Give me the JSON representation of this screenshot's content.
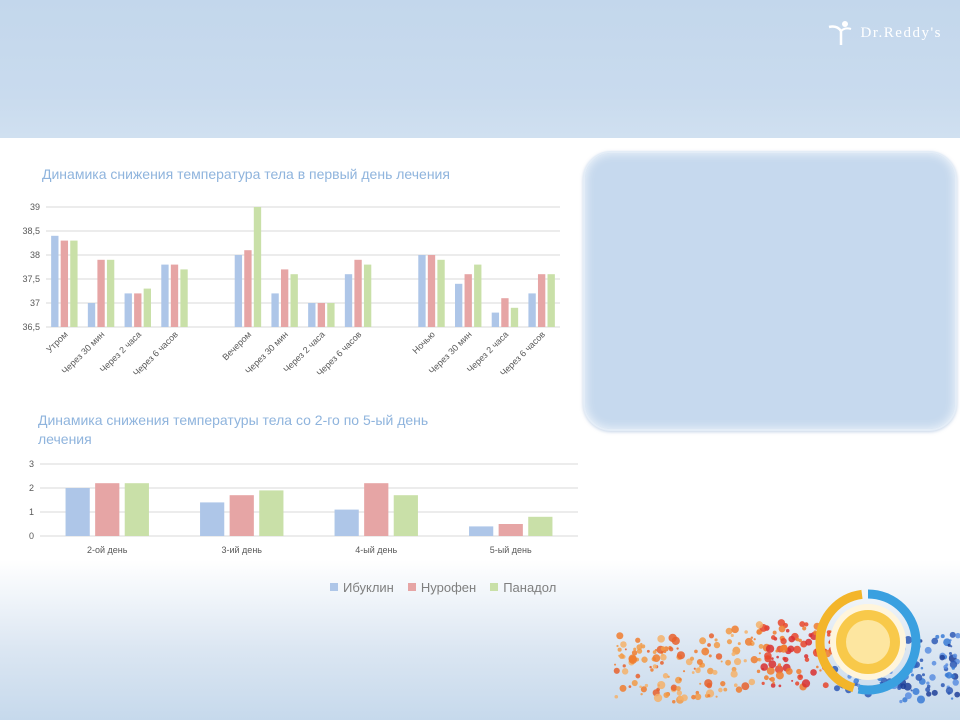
{
  "logo": {
    "text": "Dr.Reddy's"
  },
  "colors": {
    "ibuklin": "#aec6e8",
    "nurofen": "#e6a5a5",
    "panadol": "#c9e0a8",
    "title": "#8fb4dd",
    "grid": "#d9d9d9",
    "axis_text": "#595959"
  },
  "legend": {
    "items": [
      {
        "label": "Ибуклин",
        "color": "#aec6e8"
      },
      {
        "label": "Нурофен",
        "color": "#e6a5a5"
      },
      {
        "label": "Панадол",
        "color": "#c9e0a8"
      }
    ]
  },
  "chart_data": [
    {
      "type": "bar",
      "title": "Динамика снижения температура тела в первый день лечения",
      "xlabel": "",
      "ylabel": "",
      "ylim": [
        36.5,
        39
      ],
      "yticks": [
        "36,5",
        "37",
        "37,5",
        "38",
        "38,5",
        "39"
      ],
      "ytick_values": [
        36.5,
        37,
        37.5,
        38,
        38.5,
        39
      ],
      "grid": true,
      "categories": [
        "Утром",
        "Через 30 мин",
        "Через 2 часа",
        "Через 6 часов",
        "",
        "Вечером",
        "Через 30 мин",
        "Через 2 часа",
        "Через 6 часов",
        "",
        "Ночью",
        "Через 30 мин",
        "Через 2 часа",
        "Через 6 часов"
      ],
      "series": [
        {
          "name": "Ибуклин",
          "values": [
            38.4,
            37.0,
            37.2,
            37.8,
            36.5,
            38.0,
            37.2,
            37.0,
            37.6,
            36.5,
            38.0,
            37.4,
            36.8,
            37.2
          ]
        },
        {
          "name": "Нурофен",
          "values": [
            38.3,
            37.9,
            37.2,
            37.8,
            36.5,
            38.1,
            37.7,
            37.0,
            37.9,
            36.5,
            38.0,
            37.6,
            37.1,
            37.6
          ]
        },
        {
          "name": "Панадол",
          "values": [
            38.3,
            37.9,
            37.3,
            37.7,
            36.5,
            39.0,
            37.6,
            37.0,
            37.8,
            36.5,
            37.9,
            37.8,
            36.9,
            37.6
          ]
        }
      ]
    },
    {
      "type": "bar",
      "title": "Динамика снижения температуры тела со 2-го по 5-ый день лечения",
      "xlabel": "",
      "ylabel": "",
      "ylim": [
        0,
        3
      ],
      "yticks": [
        "0",
        "1",
        "2",
        "3"
      ],
      "ytick_values": [
        0,
        1,
        2,
        3
      ],
      "grid": true,
      "categories": [
        "2-ой день",
        "3-ий день",
        "4-ый день",
        "5-ый день"
      ],
      "series": [
        {
          "name": "Ибуклин",
          "values": [
            2.0,
            1.4,
            1.1,
            0.4
          ]
        },
        {
          "name": "Нурофен",
          "values": [
            2.2,
            1.7,
            2.2,
            0.5
          ]
        },
        {
          "name": "Панадол",
          "values": [
            2.2,
            1.9,
            1.7,
            0.8
          ]
        }
      ]
    }
  ]
}
